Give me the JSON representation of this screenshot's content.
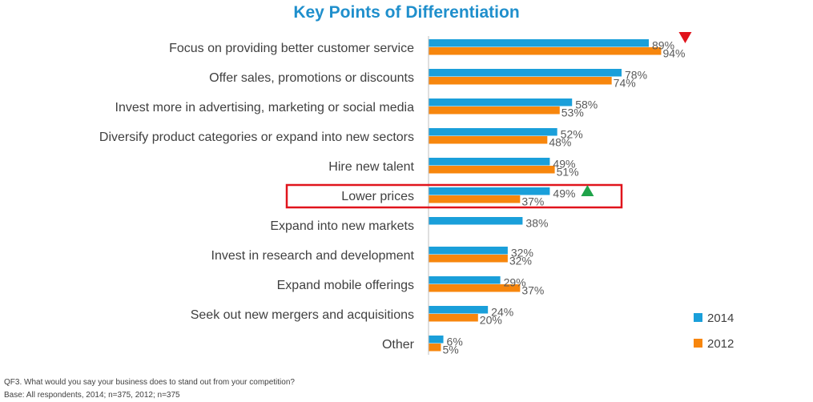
{
  "colors": {
    "series_2014": "#1a9fda",
    "series_2012": "#f7860d",
    "highlight_box": "#e0141c",
    "down_arrow": "#e0141c",
    "up_arrow": "#1fa34a",
    "title": "#1f8fcc"
  },
  "chart_data": {
    "type": "bar",
    "orientation": "horizontal",
    "title": "Key Points of Differentiation",
    "categories": [
      "Focus on providing better customer service",
      "Offer sales, promotions or discounts",
      "Invest more in advertising, marketing or social media",
      "Diversify product categories or expand into new sectors",
      "Hire new talent",
      "Lower prices",
      "Expand into new markets",
      "Invest in research and development",
      "Expand mobile offerings",
      "Seek out new mergers and acquisitions",
      "Other"
    ],
    "series": [
      {
        "name": "2014",
        "values": [
          89,
          78,
          58,
          52,
          49,
          49,
          38,
          32,
          29,
          24,
          6
        ]
      },
      {
        "name": "2012",
        "values": [
          94,
          74,
          53,
          48,
          51,
          37,
          null,
          32,
          37,
          20,
          5
        ]
      }
    ],
    "value_suffix": "%",
    "xlim": [
      0,
      100
    ],
    "grid": false,
    "legend_placement": "bottom-right",
    "highlighted_category": "Lower prices",
    "annotations": [
      {
        "category": "Focus on providing better customer service",
        "marker": "down-arrow"
      },
      {
        "category": "Lower prices",
        "marker": "up-arrow"
      }
    ]
  },
  "footnote": {
    "question": "QF3. What would you say your business does to stand out from your competition?",
    "base": "Base: All respondents, 2014; n=375, 2012; n=375"
  }
}
